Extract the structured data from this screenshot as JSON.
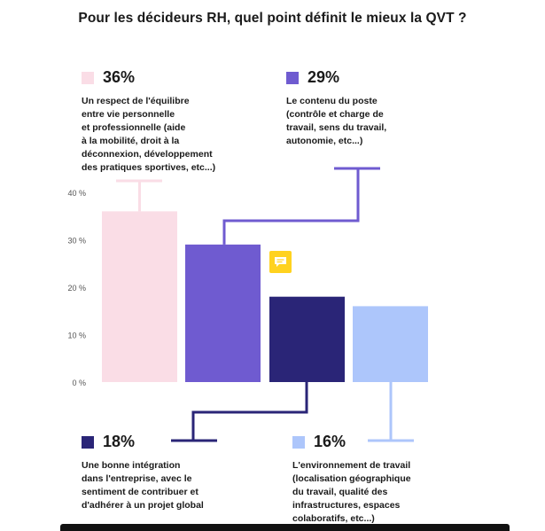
{
  "title": "Pour les décideurs RH, quel point définit le mieux la QVT ?",
  "chart_data": {
    "type": "bar",
    "title": "Pour les décideurs RH, quel point définit le mieux la QVT ?",
    "categories": [
      "Un respect de l'équilibre entre vie personnelle et professionnelle (aide à la mobilité, droit à la déconnexion, développement des pratiques sportives, etc...)",
      "Le contenu du poste (contrôle et charge de travail, sens du travail, autonomie, etc...)",
      "Une bonne intégration dans l'entreprise, avec le sentiment de contribuer et d'adhérer à un projet global",
      "L'environnement de travail (localisation géographique du travail, qualité des infrastructures, espaces colaboratifs, etc...)"
    ],
    "values": [
      36,
      29,
      18,
      16
    ],
    "colors": [
      "#fadde6",
      "#6f5bd0",
      "#2a2577",
      "#adc6fb"
    ],
    "ylim": [
      0,
      40
    ],
    "yticks": [
      "0 %",
      "10 %",
      "20 %",
      "30 %",
      "40 %"
    ],
    "grid": false,
    "xlabel": "",
    "ylabel": ""
  },
  "callouts": [
    {
      "pct": "36%",
      "color": "#fadde6",
      "lines": [
        "Un respect de l'équilibre",
        "entre vie personnelle",
        "et professionnelle (aide",
        "à la mobilité, droit à  la",
        "déconnexion, développement",
        "des pratiques sportives, etc...)"
      ]
    },
    {
      "pct": "29%",
      "color": "#6f5bd0",
      "lines": [
        "Le contenu du poste",
        "(contrôle et charge de",
        "travail, sens du travail,",
        "autonomie, etc...)"
      ]
    },
    {
      "pct": "18%",
      "color": "#2a2577",
      "lines": [
        "Une bonne intégration",
        "dans l'entreprise, avec le",
        "sentiment de contribuer et",
        "d'adhérer à un projet global"
      ]
    },
    {
      "pct": "16%",
      "color": "#adc6fb",
      "lines": [
        "L'environnement de travail",
        "(localisation géographique",
        "du travail, qualité des",
        "infrastructures, espaces",
        "colaboratifs, etc...)"
      ]
    }
  ],
  "icons": {
    "comment": "comment-icon",
    "comment_color": "#ffd21f"
  }
}
